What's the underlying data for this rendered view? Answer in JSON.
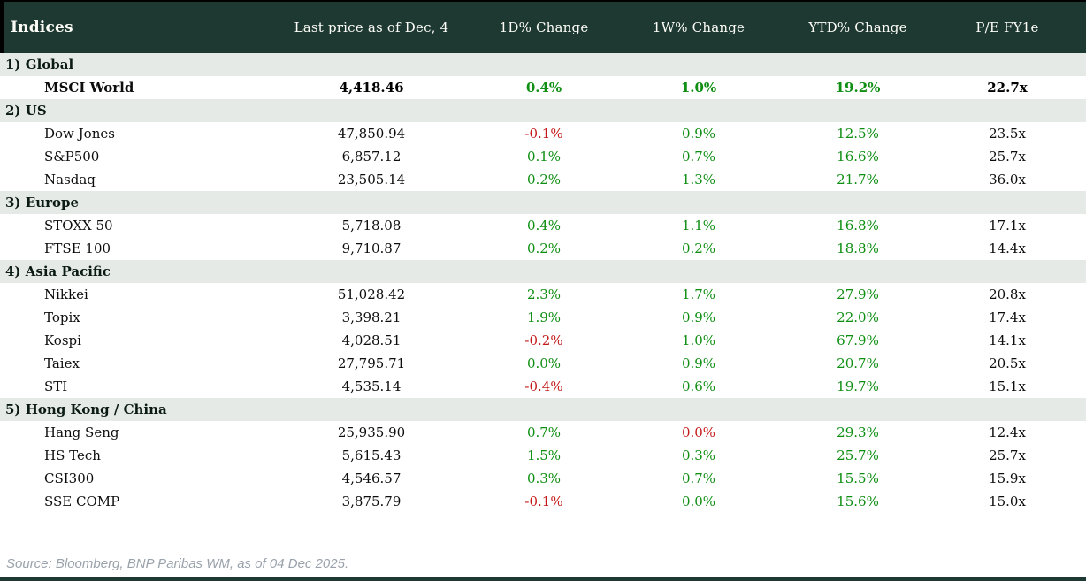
{
  "colors": {
    "header_bg": "#1e3932",
    "header_text": "#fdfdf8",
    "section_bg": "#e5eae6",
    "positive": "#0e8e12",
    "negative": "#c41a1a",
    "source_text": "#9aa2ab",
    "accent": "#1e3932"
  },
  "footer": {
    "source": "Source: Bloomberg, BNP Paribas WM, as of 04 Dec 2025."
  },
  "chart_data": {
    "type": "table",
    "title": "Indices",
    "columns": [
      "Indices",
      "Last price as of Dec, 4",
      "1D% Change",
      "1W% Change",
      "YTD% Change",
      "P/E FY1e"
    ],
    "sections": [
      {
        "label": "1) Global",
        "rows": [
          {
            "name": "MSCI World",
            "emphasis": true,
            "values": [
              {
                "text": "4,418.46",
                "color": "black"
              },
              {
                "text": "0.4%",
                "color": "green"
              },
              {
                "text": "1.0%",
                "color": "green"
              },
              {
                "text": "19.2%",
                "color": "green"
              },
              {
                "text": "22.7x",
                "color": "black"
              }
            ]
          }
        ]
      },
      {
        "label": "2) US",
        "rows": [
          {
            "name": "Dow Jones",
            "emphasis": false,
            "values": [
              {
                "text": "47,850.94",
                "color": "black"
              },
              {
                "text": "-0.1%",
                "color": "red"
              },
              {
                "text": "0.9%",
                "color": "green"
              },
              {
                "text": "12.5%",
                "color": "green"
              },
              {
                "text": "23.5x",
                "color": "black"
              }
            ]
          },
          {
            "name": "S&P500",
            "emphasis": false,
            "values": [
              {
                "text": "6,857.12",
                "color": "black"
              },
              {
                "text": "0.1%",
                "color": "green"
              },
              {
                "text": "0.7%",
                "color": "green"
              },
              {
                "text": "16.6%",
                "color": "green"
              },
              {
                "text": "25.7x",
                "color": "black"
              }
            ]
          },
          {
            "name": "Nasdaq",
            "emphasis": false,
            "values": [
              {
                "text": "23,505.14",
                "color": "black"
              },
              {
                "text": "0.2%",
                "color": "green"
              },
              {
                "text": "1.3%",
                "color": "green"
              },
              {
                "text": "21.7%",
                "color": "green"
              },
              {
                "text": "36.0x",
                "color": "black"
              }
            ]
          }
        ]
      },
      {
        "label": "3) Europe",
        "rows": [
          {
            "name": "STOXX 50",
            "emphasis": false,
            "values": [
              {
                "text": "5,718.08",
                "color": "black"
              },
              {
                "text": "0.4%",
                "color": "green"
              },
              {
                "text": "1.1%",
                "color": "green"
              },
              {
                "text": "16.8%",
                "color": "green"
              },
              {
                "text": "17.1x",
                "color": "black"
              }
            ]
          },
          {
            "name": "FTSE 100",
            "emphasis": false,
            "values": [
              {
                "text": "9,710.87",
                "color": "black"
              },
              {
                "text": "0.2%",
                "color": "green"
              },
              {
                "text": "0.2%",
                "color": "green"
              },
              {
                "text": "18.8%",
                "color": "green"
              },
              {
                "text": "14.4x",
                "color": "black"
              }
            ]
          }
        ]
      },
      {
        "label": "4) Asia Pacific",
        "rows": [
          {
            "name": "Nikkei",
            "emphasis": false,
            "values": [
              {
                "text": "51,028.42",
                "color": "black"
              },
              {
                "text": "2.3%",
                "color": "green"
              },
              {
                "text": "1.7%",
                "color": "green"
              },
              {
                "text": "27.9%",
                "color": "green"
              },
              {
                "text": "20.8x",
                "color": "black"
              }
            ]
          },
          {
            "name": "Topix",
            "emphasis": false,
            "values": [
              {
                "text": "3,398.21",
                "color": "black"
              },
              {
                "text": "1.9%",
                "color": "green"
              },
              {
                "text": "0.9%",
                "color": "green"
              },
              {
                "text": "22.0%",
                "color": "green"
              },
              {
                "text": "17.4x",
                "color": "black"
              }
            ]
          },
          {
            "name": "Kospi",
            "emphasis": false,
            "values": [
              {
                "text": "4,028.51",
                "color": "black"
              },
              {
                "text": "-0.2%",
                "color": "red"
              },
              {
                "text": "1.0%",
                "color": "green"
              },
              {
                "text": "67.9%",
                "color": "green"
              },
              {
                "text": "14.1x",
                "color": "black"
              }
            ]
          },
          {
            "name": "Taiex",
            "emphasis": false,
            "values": [
              {
                "text": "27,795.71",
                "color": "black"
              },
              {
                "text": "0.0%",
                "color": "green"
              },
              {
                "text": "0.9%",
                "color": "green"
              },
              {
                "text": "20.7%",
                "color": "green"
              },
              {
                "text": "20.5x",
                "color": "black"
              }
            ]
          },
          {
            "name": "STI",
            "emphasis": false,
            "values": [
              {
                "text": "4,535.14",
                "color": "black"
              },
              {
                "text": "-0.4%",
                "color": "red"
              },
              {
                "text": "0.6%",
                "color": "green"
              },
              {
                "text": "19.7%",
                "color": "green"
              },
              {
                "text": "15.1x",
                "color": "black"
              }
            ]
          }
        ]
      },
      {
        "label": "5) Hong Kong / China",
        "rows": [
          {
            "name": "Hang Seng",
            "emphasis": false,
            "values": [
              {
                "text": "25,935.90",
                "color": "black"
              },
              {
                "text": "0.7%",
                "color": "green"
              },
              {
                "text": "0.0%",
                "color": "red"
              },
              {
                "text": "29.3%",
                "color": "green"
              },
              {
                "text": "12.4x",
                "color": "black"
              }
            ]
          },
          {
            "name": "HS Tech",
            "emphasis": false,
            "values": [
              {
                "text": "5,615.43",
                "color": "black"
              },
              {
                "text": "1.5%",
                "color": "green"
              },
              {
                "text": "0.3%",
                "color": "green"
              },
              {
                "text": "25.7%",
                "color": "green"
              },
              {
                "text": "25.7x",
                "color": "black"
              }
            ]
          },
          {
            "name": "CSI300",
            "emphasis": false,
            "values": [
              {
                "text": "4,546.57",
                "color": "black"
              },
              {
                "text": "0.3%",
                "color": "green"
              },
              {
                "text": "0.7%",
                "color": "green"
              },
              {
                "text": "15.5%",
                "color": "green"
              },
              {
                "text": "15.9x",
                "color": "black"
              }
            ]
          },
          {
            "name": "SSE COMP",
            "emphasis": false,
            "values": [
              {
                "text": "3,875.79",
                "color": "black"
              },
              {
                "text": "-0.1%",
                "color": "red"
              },
              {
                "text": "0.0%",
                "color": "green"
              },
              {
                "text": "15.6%",
                "color": "green"
              },
              {
                "text": "15.0x",
                "color": "black"
              }
            ]
          }
        ]
      }
    ]
  }
}
